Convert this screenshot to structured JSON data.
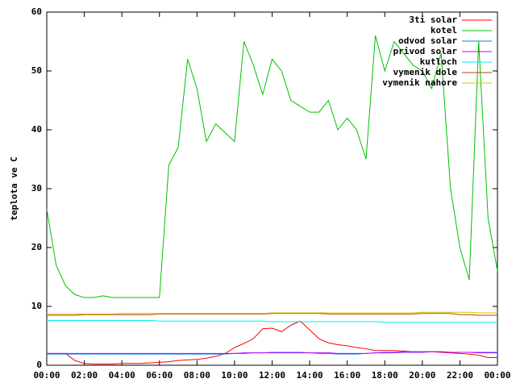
{
  "chart_data": {
    "type": "line",
    "y_label": "teplota ve C",
    "x": [
      0,
      0.5,
      1,
      1.5,
      2,
      2.5,
      3,
      3.5,
      4,
      4.5,
      5,
      5.5,
      6,
      6.5,
      7,
      7.5,
      8,
      8.5,
      9,
      9.5,
      10,
      10.5,
      11,
      11.5,
      12,
      12.5,
      13,
      13.5,
      14,
      14.5,
      15,
      15.5,
      16,
      16.5,
      17,
      17.5,
      18,
      18.5,
      19,
      19.5,
      20,
      20.5,
      21,
      21.5,
      22,
      22.5,
      23,
      23.5,
      24
    ],
    "series": [
      {
        "name": "3ti solar",
        "color": "#ff0000",
        "values": [
          2,
          2,
          2,
          0.8,
          0.3,
          0.2,
          0.2,
          0.2,
          0.3,
          0.3,
          0.3,
          0.4,
          0.5,
          0.6,
          0.8,
          0.9,
          1,
          1.2,
          1.5,
          2,
          3,
          3.7,
          4.5,
          6.2,
          6.3,
          5.7,
          6.8,
          7.5,
          6,
          4.5,
          3.8,
          3.5,
          3.3,
          3,
          2.8,
          2.5,
          2.5,
          2.5,
          2.4,
          2.3,
          2.3,
          2.3,
          2.2,
          2.1,
          2,
          1.9,
          1.7,
          1.3,
          1.3
        ]
      },
      {
        "name": "kotel",
        "color": "#00c000",
        "values": [
          26.5,
          17,
          13.5,
          12,
          11.5,
          11.5,
          11.8,
          11.5,
          11.5,
          11.5,
          11.5,
          11.5,
          11.5,
          34,
          37,
          52,
          47,
          38,
          41,
          39.5,
          38,
          55,
          51,
          46,
          52,
          50,
          45,
          44,
          43,
          43,
          45,
          40,
          42,
          40,
          35,
          56,
          50,
          55,
          53,
          51,
          50,
          47,
          53,
          30,
          20,
          14.5,
          55,
          25,
          16
        ]
      },
      {
        "name": "odvod solar",
        "color": "#0080ff",
        "values": [
          1.9,
          1.9,
          1.9,
          1.9,
          1.9,
          1.9,
          1.9,
          1.9,
          1.9,
          1.9,
          1.9,
          1.9,
          1.9,
          1.9,
          1.9,
          1.9,
          1.9,
          1.9,
          1.9,
          1.9,
          2.0,
          2.0,
          2.1,
          2.1,
          2.2,
          2.2,
          2.2,
          2.2,
          2.1,
          2.0,
          2.0,
          1.9,
          1.9,
          1.9,
          2.0,
          2.1,
          2.2,
          2.2,
          2.3,
          2.3,
          2.3,
          2.3,
          2.3,
          2.2,
          2.2,
          2.2,
          2.2,
          2.2,
          2.2
        ]
      },
      {
        "name": "privod solar",
        "color": "#c000ff",
        "values": [
          2.0,
          2.0,
          2.0,
          2.0,
          2.0,
          2.0,
          2.0,
          2.0,
          2.0,
          2.0,
          2.0,
          2.0,
          2.0,
          2.0,
          2.0,
          2.0,
          2.0,
          2.0,
          2.0,
          2.0,
          2.0,
          2.1,
          2.1,
          2.1,
          2.1,
          2.1,
          2.1,
          2.1,
          2.1,
          2.1,
          2.1,
          2.0,
          2.0,
          2.0,
          2.0,
          2.1,
          2.1,
          2.1,
          2.2,
          2.2,
          2.2,
          2.3,
          2.3,
          2.2,
          2.2,
          2.2,
          2.1,
          2.1,
          2.1
        ]
      },
      {
        "name": "kutloch",
        "color": "#00eeee",
        "values": [
          7.6,
          7.6,
          7.6,
          7.6,
          7.6,
          7.6,
          7.6,
          7.6,
          7.6,
          7.6,
          7.6,
          7.6,
          7.5,
          7.5,
          7.5,
          7.5,
          7.5,
          7.5,
          7.5,
          7.5,
          7.5,
          7.5,
          7.5,
          7.5,
          7.4,
          7.4,
          7.4,
          7.4,
          7.4,
          7.4,
          7.4,
          7.4,
          7.4,
          7.4,
          7.4,
          7.4,
          7.3,
          7.3,
          7.3,
          7.3,
          7.3,
          7.3,
          7.3,
          7.3,
          7.3,
          7.3,
          7.3,
          7.3,
          7.3
        ]
      },
      {
        "name": "vymenik dole",
        "color": "#c04000",
        "values": [
          8.5,
          8.5,
          8.5,
          8.5,
          8.6,
          8.6,
          8.6,
          8.6,
          8.6,
          8.6,
          8.6,
          8.6,
          8.7,
          8.7,
          8.7,
          8.7,
          8.7,
          8.7,
          8.7,
          8.7,
          8.7,
          8.7,
          8.7,
          8.7,
          8.8,
          8.8,
          8.8,
          8.8,
          8.8,
          8.8,
          8.7,
          8.7,
          8.7,
          8.7,
          8.7,
          8.7,
          8.7,
          8.7,
          8.7,
          8.7,
          8.8,
          8.8,
          8.8,
          8.8,
          8.6,
          8.6,
          8.5,
          8.5,
          8.5
        ]
      },
      {
        "name": "vymenik nahore",
        "color": "#c8c800",
        "values": [
          8.7,
          8.7,
          8.7,
          8.7,
          8.7,
          8.7,
          8.7,
          8.7,
          8.8,
          8.8,
          8.8,
          8.8,
          8.8,
          8.8,
          8.8,
          8.8,
          8.8,
          8.8,
          8.8,
          8.8,
          8.8,
          8.8,
          8.8,
          8.8,
          8.9,
          8.9,
          8.9,
          8.9,
          8.9,
          8.9,
          8.9,
          8.9,
          8.9,
          8.9,
          8.9,
          8.9,
          8.9,
          8.9,
          8.9,
          8.9,
          9.0,
          9.0,
          9.0,
          9.0,
          9.0,
          9.0,
          8.9,
          8.9,
          8.9
        ]
      }
    ],
    "xlim": [
      0,
      24
    ],
    "xticks": [
      {
        "value": 0,
        "label": "00:00"
      },
      {
        "value": 2,
        "label": "02:00"
      },
      {
        "value": 4,
        "label": "04:00"
      },
      {
        "value": 6,
        "label": "06:00"
      },
      {
        "value": 8,
        "label": "08:00"
      },
      {
        "value": 10,
        "label": "10:00"
      },
      {
        "value": 12,
        "label": "12:00"
      },
      {
        "value": 14,
        "label": "14:00"
      },
      {
        "value": 16,
        "label": "16:00"
      },
      {
        "value": 18,
        "label": "18:00"
      },
      {
        "value": 20,
        "label": "20:00"
      },
      {
        "value": 22,
        "label": "22:00"
      },
      {
        "value": 24,
        "label": "00:00"
      }
    ],
    "ylim": [
      0,
      60
    ],
    "yticks": [
      0,
      10,
      20,
      30,
      40,
      50,
      60
    ],
    "legend": "top-right"
  }
}
